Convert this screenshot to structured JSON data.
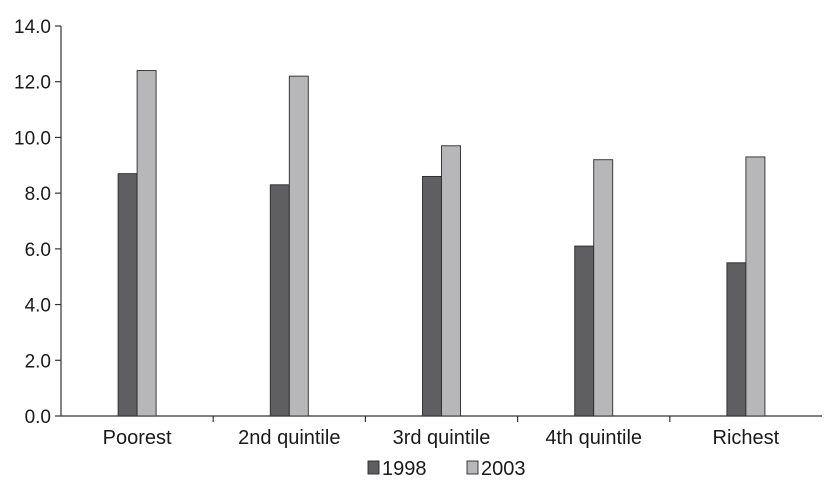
{
  "chart_data": {
    "type": "bar",
    "categories": [
      "Poorest",
      "2nd quintile",
      "3rd quintile",
      "4th quintile",
      "Richest"
    ],
    "series": [
      {
        "name": "1998",
        "values": [
          8.7,
          8.3,
          8.6,
          6.1,
          5.5
        ],
        "color": "#5f5f61"
      },
      {
        "name": "2003",
        "values": [
          12.4,
          12.2,
          9.7,
          9.2,
          9.3
        ],
        "color": "#b7b7b9"
      }
    ],
    "ylim": [
      0,
      14
    ],
    "yticks": [
      "0.0",
      "2.0",
      "4.0",
      "6.0",
      "8.0",
      "10.0",
      "12.0",
      "14.0"
    ],
    "title": "",
    "xlabel": "",
    "ylabel": "",
    "grid": false,
    "legend_position": "bottom-center"
  }
}
